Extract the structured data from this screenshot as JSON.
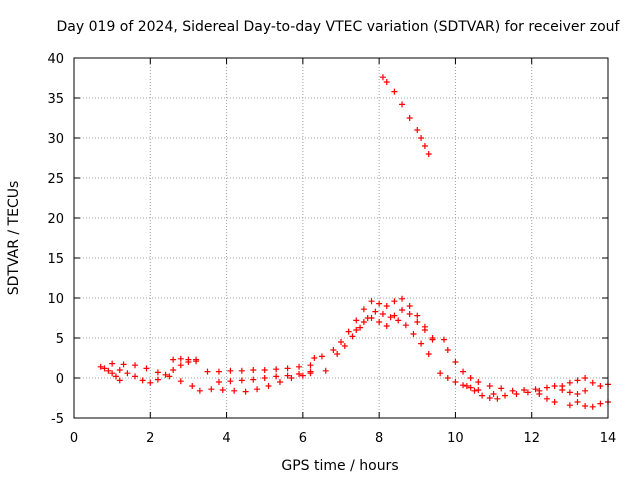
{
  "chart_data": {
    "type": "scatter",
    "title": "Day 019 of 2024, Sidereal Day-to-day VTEC variation (SDTVAR) for receiver zouf",
    "xlabel": "GPS time / hours",
    "ylabel": "SDTVAR / TECUs",
    "xlim": [
      0,
      14
    ],
    "ylim": [
      -5,
      40
    ],
    "xticks": [
      0,
      2,
      4,
      6,
      8,
      10,
      12,
      14
    ],
    "yticks": [
      -5,
      0,
      5,
      10,
      15,
      20,
      25,
      30,
      35,
      40
    ],
    "grid": true,
    "marker": "+",
    "marker_color": "#ff0000",
    "series": [
      {
        "name": "s1",
        "x": [
          0.7,
          0.8,
          0.9,
          1.0,
          1.1,
          1.2
        ],
        "y": [
          1.4,
          1.2,
          0.9,
          0.6,
          0.2,
          -0.3
        ]
      },
      {
        "name": "s2",
        "x": [
          1.0,
          1.3,
          1.6,
          1.9,
          2.2,
          2.5,
          2.8,
          3.1,
          3.3
        ],
        "y": [
          1.8,
          1.7,
          1.6,
          1.2,
          0.7,
          0.2,
          -0.4,
          -1.0,
          -1.6
        ]
      },
      {
        "name": "s3",
        "x": [
          1.2,
          1.4,
          1.6,
          1.8,
          2.0,
          2.2,
          2.4,
          2.6,
          2.8,
          3.0,
          3.2
        ],
        "y": [
          1.0,
          0.6,
          0.2,
          -0.3,
          -0.6,
          -0.2,
          0.4,
          1.0,
          1.6,
          2.0,
          2.3
        ]
      },
      {
        "name": "s4",
        "x": [
          2.6,
          2.8,
          3.0,
          3.2
        ],
        "y": [
          2.3,
          2.4,
          2.3,
          2.1
        ]
      },
      {
        "name": "s5",
        "x": [
          3.5,
          3.8,
          4.1,
          4.4,
          4.7,
          5.0,
          5.3,
          5.6,
          5.9,
          6.2
        ],
        "y": [
          0.8,
          0.8,
          0.9,
          0.9,
          1.0,
          1.0,
          1.1,
          1.2,
          1.4,
          1.6
        ]
      },
      {
        "name": "s6",
        "x": [
          3.6,
          3.9,
          4.2,
          4.5,
          4.8,
          5.1,
          5.4,
          5.7,
          6.0,
          6.2
        ],
        "y": [
          -1.4,
          -1.5,
          -1.6,
          -1.7,
          -1.4,
          -1.0,
          -0.5,
          0.0,
          0.3,
          0.6
        ]
      },
      {
        "name": "s7",
        "x": [
          3.8,
          4.1,
          4.4,
          4.7,
          5.0,
          5.3,
          5.6,
          5.9,
          6.2
        ],
        "y": [
          -0.5,
          -0.4,
          -0.3,
          -0.2,
          0.0,
          0.2,
          0.3,
          0.5,
          0.8
        ]
      },
      {
        "name": "s8",
        "x": [
          6.3,
          6.5,
          6.6
        ],
        "y": [
          2.5,
          2.7,
          0.9
        ]
      },
      {
        "name": "s9",
        "x": [
          6.8,
          7.0,
          7.2,
          7.4,
          7.6,
          7.8,
          8.0,
          8.2,
          8.4,
          8.6,
          8.8,
          9.0,
          9.2,
          9.4
        ],
        "y": [
          3.5,
          4.5,
          5.8,
          7.2,
          8.6,
          9.6,
          9.3,
          9.0,
          9.6,
          9.9,
          9.0,
          7.8,
          6.4,
          5.0
        ]
      },
      {
        "name": "s10",
        "x": [
          6.9,
          7.1,
          7.3,
          7.5,
          7.7,
          7.9,
          8.1,
          8.3,
          8.5,
          8.7,
          8.9,
          9.1,
          9.3
        ],
        "y": [
          3.0,
          4.0,
          5.2,
          6.3,
          7.5,
          8.3,
          8.0,
          7.6,
          7.2,
          6.6,
          5.5,
          4.3,
          3.0
        ]
      },
      {
        "name": "s11",
        "x": [
          7.4,
          7.6,
          7.8,
          8.0,
          8.2,
          8.4,
          8.6,
          8.8,
          9.0,
          9.2,
          9.4
        ],
        "y": [
          6.0,
          7.0,
          7.5,
          7.0,
          6.5,
          7.8,
          8.5,
          8.0,
          7.0,
          6.0,
          4.8
        ]
      },
      {
        "name": "s12",
        "x": [
          8.1,
          8.2,
          8.4,
          8.6,
          8.8,
          9.0,
          9.1,
          9.2,
          9.3
        ],
        "y": [
          37.6,
          37.0,
          35.8,
          34.2,
          32.5,
          31.0,
          30.0,
          29.0,
          28.0
        ]
      },
      {
        "name": "s13",
        "x": [
          9.7,
          9.8,
          10.0,
          10.2,
          10.4,
          10.6
        ],
        "y": [
          4.8,
          3.5,
          2.0,
          0.8,
          0.0,
          -0.5
        ]
      },
      {
        "name": "s14",
        "x": [
          9.6,
          9.8,
          10.0,
          10.2,
          10.4,
          10.6
        ],
        "y": [
          0.6,
          0.0,
          -0.5,
          -0.9,
          -1.2,
          -1.5
        ]
      },
      {
        "name": "s15",
        "x": [
          10.3,
          10.5,
          10.7,
          10.9,
          11.1
        ],
        "y": [
          -1.0,
          -1.6,
          -2.2,
          -2.5,
          -2.6
        ]
      },
      {
        "name": "s16",
        "x": [
          10.9,
          11.2,
          11.5,
          11.8,
          12.1,
          12.4,
          12.6
        ],
        "y": [
          -1.0,
          -1.3,
          -1.6,
          -1.5,
          -1.4,
          -1.2,
          -1.0
        ]
      },
      {
        "name": "s17",
        "x": [
          11.0,
          11.3,
          11.6,
          11.9,
          12.2
        ],
        "y": [
          -2.0,
          -2.2,
          -2.0,
          -1.8,
          -1.6
        ]
      },
      {
        "name": "s18",
        "x": [
          12.2,
          12.4,
          12.6
        ],
        "y": [
          -2.0,
          -2.6,
          -3.0
        ]
      },
      {
        "name": "s19",
        "x": [
          12.8,
          13.0,
          13.2,
          13.4,
          13.6,
          13.8,
          14.0
        ],
        "y": [
          -1.0,
          -0.6,
          -0.3,
          0.0,
          -0.6,
          -1.0,
          -0.8
        ]
      },
      {
        "name": "s20",
        "x": [
          13.0,
          13.2,
          13.4,
          13.6,
          13.8,
          14.0
        ],
        "y": [
          -3.4,
          -3.0,
          -3.5,
          -3.6,
          -3.2,
          -3.0
        ]
      },
      {
        "name": "s21",
        "x": [
          12.8,
          13.0,
          13.2,
          13.4
        ],
        "y": [
          -1.5,
          -1.8,
          -2.0,
          -1.6
        ]
      }
    ]
  }
}
